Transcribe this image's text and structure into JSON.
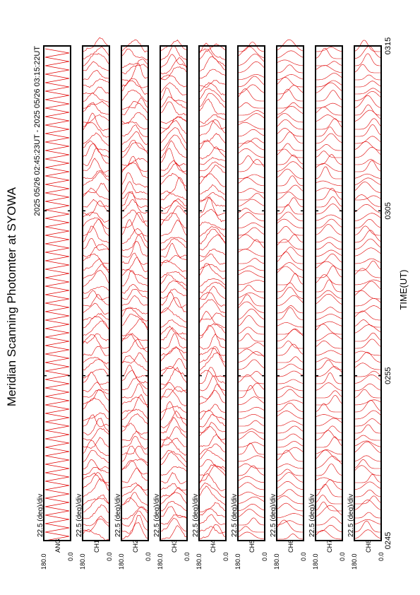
{
  "chart_data": {
    "type": "photometer",
    "title": "Meridian Scanning Photomter at SYOWA",
    "subtitle": "2025 05/26 02:45:23UT - 2025 05/26 03:15:22UT",
    "x_label": "TIME(UT)",
    "xlim": [
      165,
      195
    ],
    "xticks": [
      {
        "value": 165,
        "label": "0245"
      },
      {
        "value": 175,
        "label": "0255"
      },
      {
        "value": 185,
        "label": "0305"
      },
      {
        "value": 195,
        "label": "0315"
      }
    ],
    "scale_label": "22.5 (deg)/div",
    "ylim_labels": [
      "180.0",
      "0.0"
    ],
    "panels": [
      "ANG",
      "CH1",
      "CH2",
      "CH3",
      "CH4",
      "CH5",
      "CH6",
      "CH7",
      "CH8"
    ],
    "color": "#e00000"
  }
}
